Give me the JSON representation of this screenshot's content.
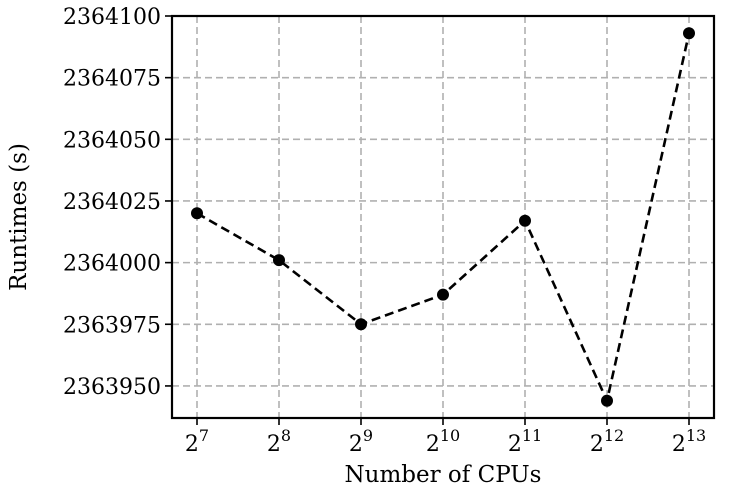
{
  "chart_data": {
    "type": "line",
    "title": "",
    "xlabel": "Number of CPUs",
    "ylabel": "Runtimes (s)",
    "x_scale": "log2",
    "x": [
      {
        "base": "2",
        "exp": "7"
      },
      {
        "base": "2",
        "exp": "8"
      },
      {
        "base": "2",
        "exp": "9"
      },
      {
        "base": "2",
        "exp": "10"
      },
      {
        "base": "2",
        "exp": "11"
      },
      {
        "base": "2",
        "exp": "12"
      },
      {
        "base": "2",
        "exp": "13"
      }
    ],
    "series": [
      {
        "values": [
          2364020,
          2364001,
          2363975,
          2363987,
          2364017,
          2363944,
          2364093
        ],
        "color": "#000000",
        "line_style": "dashed",
        "marker": "circle"
      }
    ],
    "ylim": [
      2363937,
      2364100
    ],
    "yticks": [
      2363950,
      2363975,
      2364000,
      2364025,
      2364050,
      2364075,
      2364100
    ],
    "ytick_labels": [
      "2363950",
      "2363975",
      "2364000",
      "2364025",
      "2364050",
      "2364075",
      "2364100"
    ],
    "grid": true,
    "legend": "none"
  }
}
